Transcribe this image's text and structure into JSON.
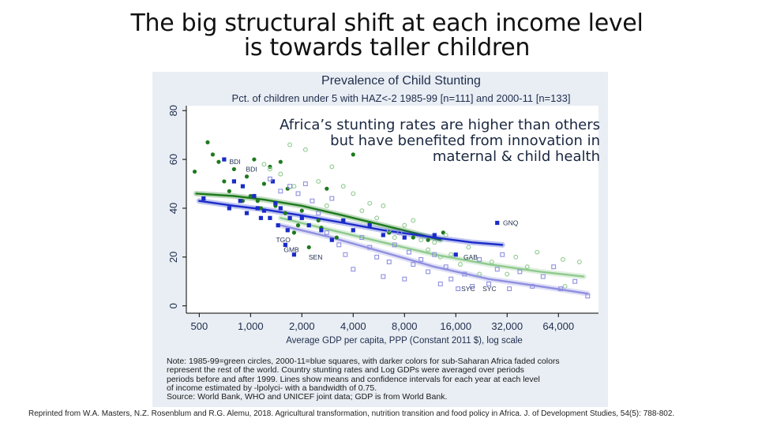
{
  "slide": {
    "title_line1": "The big structural shift at each income level",
    "title_line2": "is towards taller children"
  },
  "overlay_note": {
    "line1": "Africa’s stunting rates are higher than others",
    "line2": "but have benefited from innovation in",
    "line3": "maternal & child health"
  },
  "citation": {
    "text": "Reprinted from W.A. Masters, N.Z. Rosenblum and R.G. Alemu, 2018. Agricultural transformation, nutrition transition and food policy in Africa. J. of Development Studies, 54(5): 788-802."
  },
  "note": {
    "line1": "Note: 1985-99=green circles, 2000-11=blue squares, with darker colors for sub-Saharan Africa faded colors",
    "line2": "represent the rest of the world. Country stunting rates and Log GDPs were averaged over periods",
    "line3": "periods before and after 1999. Lines show means and confidence intervals for each year at each level",
    "line4": "of income estimated by -lpolyci- with a bandwidth of 0.75.",
    "line5": "Source: World Bank, WHO and UNICEF joint data; GDP is from World Bank."
  },
  "colors": {
    "panel_bg": "#e9eef4",
    "plot_bg": "#ffffff",
    "green_dark": "#1e7a1e",
    "green_light": "#8fca8f",
    "blue_dark": "#1a2bc8",
    "blue_light": "#8f8fe0",
    "axis_text": "#1f2d4d"
  },
  "chart_data": {
    "type": "scatter",
    "title": "Prevalence of Child Stunting",
    "subtitle": "Pct. of children under 5 with HAZ<-2 1985-99 [n=111] and 2000-11 [n=133]",
    "xlabel": "Average GDP per capita, PPP (Constant 2011 $), log scale",
    "ylabel": "",
    "x_scale": "log",
    "xlim": [
      420,
      110000
    ],
    "ylim": [
      -3,
      82
    ],
    "x_ticks": [
      500,
      1000,
      2000,
      4000,
      8000,
      16000,
      32000,
      64000
    ],
    "x_tick_labels": [
      "500",
      "1,000",
      "2,000",
      "4,000",
      "8,000",
      "16,000",
      "32,000",
      "64,000"
    ],
    "y_ticks": [
      0,
      20,
      40,
      60,
      80
    ],
    "y_tick_labels": [
      "0",
      "20",
      "40",
      "60",
      "80"
    ],
    "grid": false,
    "legend": "none",
    "series": [
      {
        "color_key": "green_dark",
        "marker": "circle-filled",
        "points": [
          [
            470,
            55
          ],
          [
            560,
            67
          ],
          [
            600,
            62
          ],
          [
            650,
            59
          ],
          [
            700,
            51
          ],
          [
            750,
            47
          ],
          [
            800,
            56
          ],
          [
            900,
            43
          ],
          [
            950,
            53
          ],
          [
            1000,
            45
          ],
          [
            1050,
            60
          ],
          [
            1100,
            43
          ],
          [
            1150,
            40
          ],
          [
            1200,
            50
          ],
          [
            1300,
            57
          ],
          [
            1400,
            41
          ],
          [
            1500,
            59
          ],
          [
            1600,
            38
          ],
          [
            1650,
            48
          ],
          [
            1700,
            36
          ],
          [
            1800,
            30
          ],
          [
            1900,
            33
          ],
          [
            2000,
            39
          ],
          [
            2200,
            24
          ],
          [
            2500,
            35
          ],
          [
            2600,
            32
          ],
          [
            2800,
            48
          ],
          [
            3200,
            28
          ],
          [
            4000,
            62
          ],
          [
            5000,
            34
          ],
          [
            6500,
            30
          ],
          [
            9000,
            28
          ],
          [
            11000,
            27
          ],
          [
            13500,
            30
          ]
        ]
      },
      {
        "color_key": "green_light",
        "marker": "circle-open",
        "points": [
          [
            1200,
            58
          ],
          [
            1300,
            56
          ],
          [
            1500,
            54
          ],
          [
            1700,
            66
          ],
          [
            1800,
            49
          ],
          [
            2100,
            64
          ],
          [
            2500,
            51
          ],
          [
            2800,
            41
          ],
          [
            3000,
            57
          ],
          [
            3500,
            49
          ],
          [
            4000,
            46
          ],
          [
            4500,
            39
          ],
          [
            5000,
            42
          ],
          [
            5500,
            36
          ],
          [
            6000,
            41
          ],
          [
            6500,
            31
          ],
          [
            7000,
            28
          ],
          [
            8000,
            33
          ],
          [
            9000,
            35
          ],
          [
            10000,
            27
          ],
          [
            11000,
            23
          ],
          [
            12000,
            26
          ],
          [
            13000,
            20
          ],
          [
            14000,
            29
          ],
          [
            15000,
            21
          ],
          [
            17000,
            17
          ],
          [
            19000,
            24
          ],
          [
            22000,
            13
          ],
          [
            26000,
            18
          ],
          [
            32000,
            13
          ],
          [
            36000,
            20
          ],
          [
            42000,
            16
          ],
          [
            48000,
            22
          ],
          [
            68000,
            19
          ],
          [
            70000,
            8
          ],
          [
            85000,
            18
          ]
        ]
      },
      {
        "color_key": "blue_dark",
        "marker": "square-filled",
        "points": [
          [
            530,
            44
          ],
          [
            700,
            60
          ],
          [
            750,
            40
          ],
          [
            800,
            51
          ],
          [
            870,
            43
          ],
          [
            900,
            49
          ],
          [
            950,
            38
          ],
          [
            1050,
            45
          ],
          [
            1100,
            40
          ],
          [
            1150,
            36
          ],
          [
            1200,
            39
          ],
          [
            1300,
            36
          ],
          [
            1350,
            51
          ],
          [
            1400,
            42
          ],
          [
            1450,
            33
          ],
          [
            1500,
            40
          ],
          [
            1600,
            25
          ],
          [
            1650,
            31
          ],
          [
            1700,
            36
          ],
          [
            1800,
            21
          ],
          [
            2000,
            36
          ],
          [
            2200,
            33
          ],
          [
            2600,
            31
          ],
          [
            3000,
            27
          ],
          [
            3500,
            35
          ],
          [
            4000,
            31
          ],
          [
            5000,
            33
          ],
          [
            6000,
            29
          ],
          [
            8000,
            28
          ],
          [
            12000,
            29
          ],
          [
            16000,
            21
          ],
          [
            28000,
            34
          ]
        ]
      },
      {
        "color_key": "blue_light",
        "marker": "square-open",
        "points": [
          [
            1300,
            52
          ],
          [
            1500,
            47
          ],
          [
            1700,
            49
          ],
          [
            1900,
            46
          ],
          [
            2100,
            50
          ],
          [
            2300,
            43
          ],
          [
            2500,
            38
          ],
          [
            2800,
            30
          ],
          [
            3000,
            44
          ],
          [
            3300,
            25
          ],
          [
            3600,
            21
          ],
          [
            4000,
            15
          ],
          [
            4500,
            28
          ],
          [
            5000,
            24
          ],
          [
            5500,
            20
          ],
          [
            6000,
            12
          ],
          [
            6500,
            18
          ],
          [
            7000,
            25
          ],
          [
            7500,
            30
          ],
          [
            8000,
            11
          ],
          [
            8500,
            22
          ],
          [
            9000,
            17
          ],
          [
            10000,
            19
          ],
          [
            11000,
            14
          ],
          [
            12000,
            21
          ],
          [
            13000,
            9
          ],
          [
            14000,
            16
          ],
          [
            15000,
            11
          ],
          [
            16500,
            7
          ],
          [
            18000,
            13
          ],
          [
            20000,
            8
          ],
          [
            22000,
            19
          ],
          [
            25000,
            9
          ],
          [
            28000,
            15
          ],
          [
            30000,
            21
          ],
          [
            33000,
            7
          ],
          [
            38000,
            14
          ],
          [
            45000,
            8
          ],
          [
            52000,
            12
          ],
          [
            60000,
            16
          ],
          [
            66000,
            7
          ],
          [
            80000,
            10
          ],
          [
            95000,
            4
          ]
        ]
      },
      {
        "color_key": "green_dark",
        "marker": "line",
        "band": true,
        "points": [
          [
            480,
            46
          ],
          [
            800,
            45
          ],
          [
            1200,
            43.5
          ],
          [
            2000,
            41
          ],
          [
            3500,
            37
          ],
          [
            6000,
            33
          ],
          [
            9000,
            30
          ],
          [
            13000,
            27
          ]
        ]
      },
      {
        "color_key": "blue_dark",
        "marker": "line",
        "band": true,
        "points": [
          [
            500,
            43
          ],
          [
            800,
            41
          ],
          [
            1200,
            39.5
          ],
          [
            2000,
            37
          ],
          [
            3500,
            34
          ],
          [
            6000,
            31
          ],
          [
            12000,
            28
          ],
          [
            20000,
            26
          ],
          [
            30000,
            25
          ]
        ]
      },
      {
        "color_key": "green_light",
        "marker": "line",
        "band": true,
        "points": [
          [
            1500,
            36
          ],
          [
            3000,
            31
          ],
          [
            6000,
            26
          ],
          [
            12000,
            21
          ],
          [
            25000,
            17
          ],
          [
            50000,
            14
          ],
          [
            90000,
            12
          ]
        ]
      },
      {
        "color_key": "blue_light",
        "marker": "line",
        "band": true,
        "points": [
          [
            1500,
            33
          ],
          [
            3000,
            28
          ],
          [
            6000,
            22
          ],
          [
            12000,
            16
          ],
          [
            25000,
            11
          ],
          [
            50000,
            8
          ],
          [
            95000,
            5
          ]
        ]
      }
    ],
    "annotations": [
      {
        "text": "BDI",
        "x": 720,
        "y": 59
      },
      {
        "text": "BDI",
        "x": 900,
        "y": 56
      },
      {
        "text": "GNQ",
        "x": 29000,
        "y": 34
      },
      {
        "text": "TGO",
        "x": 1350,
        "y": 27
      },
      {
        "text": "GMB",
        "x": 1500,
        "y": 23
      },
      {
        "text": "SEN",
        "x": 2100,
        "y": 20
      },
      {
        "text": "GAB",
        "x": 17000,
        "y": 20
      },
      {
        "text": "SYC",
        "x": 16500,
        "y": 7
      },
      {
        "text": "SYC",
        "x": 22000,
        "y": 7
      }
    ]
  }
}
